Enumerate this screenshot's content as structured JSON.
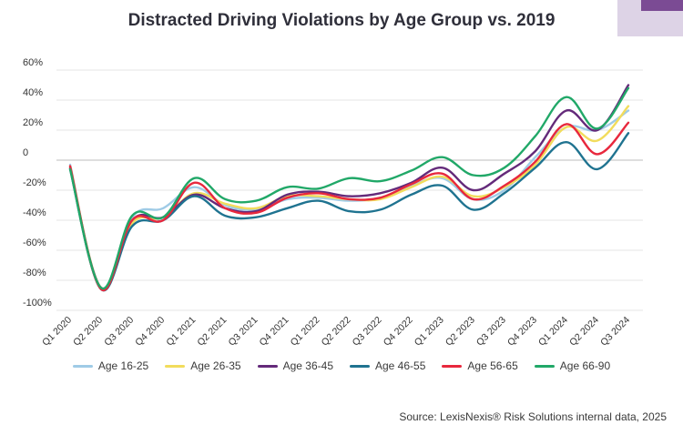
{
  "title": "Distracted Driving Violations by Age Group vs. 2019",
  "source": "Source: LexisNexis® Risk Solutions internal data, 2025",
  "chart_data": {
    "type": "line",
    "title": "Distracted Driving Violations by Age Group vs. 2019",
    "xlabel": "",
    "ylabel": "",
    "ylim": [
      -100,
      60
    ],
    "y_ticks": [
      60,
      40,
      20,
      0,
      -20,
      -40,
      -60,
      -80,
      -100
    ],
    "y_tick_labels": [
      "60%",
      "40%",
      "20%",
      "0",
      "-20%",
      "-40%",
      "-60%",
      "-80%",
      "-100%"
    ],
    "grid": true,
    "legend_position": "bottom",
    "categories": [
      "Q1 2020",
      "Q2 2020",
      "Q3 2020",
      "Q4 2020",
      "Q1 2021",
      "Q2 2021",
      "Q3 2021",
      "Q4 2021",
      "Q1 2022",
      "Q2 2022",
      "Q3 2022",
      "Q4 2022",
      "Q1 2023",
      "Q2 2023",
      "Q3 2023",
      "Q4 2023",
      "Q1 2024",
      "Q2 2024",
      "Q3 2024"
    ],
    "series": [
      {
        "name": "Age 16-25",
        "color": "#9fcbe6",
        "values": [
          -3,
          -86,
          -38,
          -32,
          -18,
          -30,
          -33,
          -26,
          -25,
          -27,
          -25,
          -17,
          -12,
          -26,
          -20,
          2,
          22,
          20,
          33
        ]
      },
      {
        "name": "Age 26-35",
        "color": "#f2dc5c",
        "values": [
          -4,
          -85,
          -42,
          -38,
          -22,
          -29,
          -32,
          -24,
          -24,
          -26,
          -26,
          -18,
          -11,
          -24,
          -18,
          -3,
          22,
          13,
          36
        ]
      },
      {
        "name": "Age 36-45",
        "color": "#642a7a",
        "values": [
          -5,
          -85,
          -40,
          -38,
          -23,
          -32,
          -34,
          -23,
          -21,
          -24,
          -22,
          -15,
          -5,
          -20,
          -9,
          6,
          33,
          20,
          50
        ]
      },
      {
        "name": "Age 46-55",
        "color": "#1f7390",
        "values": [
          -6,
          -86,
          -44,
          -40,
          -24,
          -37,
          -38,
          -32,
          -27,
          -34,
          -33,
          -23,
          -17,
          -33,
          -22,
          -5,
          12,
          -6,
          18
        ]
      },
      {
        "name": "Age 56-65",
        "color": "#e8283d",
        "values": [
          -4,
          -86,
          -40,
          -40,
          -15,
          -32,
          -35,
          -25,
          -22,
          -26,
          -25,
          -16,
          -9,
          -26,
          -17,
          -1,
          24,
          4,
          25
        ]
      },
      {
        "name": "Age 66-90",
        "color": "#21a868",
        "values": [
          -6,
          -85,
          -37,
          -38,
          -12,
          -26,
          -27,
          -18,
          -19,
          -12,
          -14,
          -7,
          2,
          -10,
          -5,
          16,
          42,
          21,
          48
        ]
      }
    ]
  }
}
